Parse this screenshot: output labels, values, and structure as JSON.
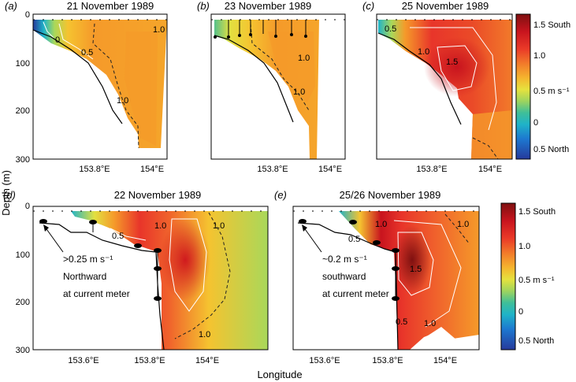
{
  "figure": {
    "ylabel": "Depth (m)",
    "xlabel": "Longitude"
  },
  "chart_data": [
    {
      "type": "heatmap",
      "panel_letter": "(a)",
      "title": "21 November 1989",
      "yticks": [
        0,
        100,
        200,
        300
      ],
      "ylim": [
        0,
        300
      ],
      "xticks": [
        "153.8°E",
        "154°E"
      ],
      "contour_labels": [
        "0",
        "0.5",
        "1.0",
        "1.0"
      ],
      "bottom_profile": [
        [
          153.7,
          35
        ],
        [
          153.74,
          55
        ],
        [
          153.78,
          85
        ],
        [
          153.82,
          125
        ],
        [
          153.86,
          175
        ],
        [
          153.9,
          230
        ]
      ],
      "max_speed_south": 1.3
    },
    {
      "type": "heatmap",
      "panel_letter": "(b)",
      "title": "23 November 1989",
      "yticks": [],
      "ylim": [
        0,
        300
      ],
      "xticks": [
        "153.8°E",
        "154°E"
      ],
      "contour_labels": [
        "1.0",
        "1.0"
      ],
      "bottom_profile": [
        [
          153.69,
          45
        ],
        [
          153.74,
          60
        ],
        [
          153.78,
          85
        ],
        [
          153.82,
          125
        ],
        [
          153.86,
          175
        ],
        [
          153.9,
          230
        ]
      ],
      "max_speed_south": 1.2
    },
    {
      "type": "heatmap",
      "panel_letter": "(c)",
      "title": "25 November 1989",
      "yticks": [],
      "ylim": [
        0,
        300
      ],
      "xticks": [
        "153.8°E",
        "154°E"
      ],
      "contour_labels": [
        "0.5",
        "1.0",
        "1.5"
      ],
      "bottom_profile": [
        [
          153.7,
          35
        ],
        [
          153.74,
          55
        ],
        [
          153.78,
          85
        ],
        [
          153.82,
          125
        ],
        [
          153.86,
          175
        ],
        [
          153.9,
          230
        ]
      ],
      "max_speed_south": 1.6
    },
    {
      "type": "heatmap",
      "panel_letter": "(d)",
      "title": "22 November 1989",
      "yticks": [
        0,
        100,
        200,
        300
      ],
      "ylim": [
        0,
        300
      ],
      "xticks": [
        "153.6°E",
        "153.8°E",
        "154°E"
      ],
      "contour_labels": [
        "0.5",
        "1.0",
        "1.0",
        "1.0"
      ],
      "annotation": [
        ">0.25 m s⁻¹",
        "Northward",
        "at current meter"
      ],
      "bottom_profile": [
        [
          153.53,
          30
        ],
        [
          153.6,
          40
        ],
        [
          153.66,
          60
        ],
        [
          153.72,
          80
        ],
        [
          153.76,
          95
        ],
        [
          153.79,
          160
        ],
        [
          153.81,
          300
        ]
      ],
      "max_speed_south": 1.5
    },
    {
      "type": "heatmap",
      "panel_letter": "(e)",
      "title": "25/26 November 1989",
      "yticks": [],
      "ylim": [
        0,
        300
      ],
      "xticks": [
        "153.6°E",
        "153.8°E",
        "154°E"
      ],
      "contour_labels": [
        "0.5",
        "1.0",
        "1.0",
        "1.5",
        "0.5",
        "1.0"
      ],
      "annotation": [
        "~0.2 m s⁻¹",
        "southward",
        "at current meter"
      ],
      "bottom_profile": [
        [
          153.53,
          30
        ],
        [
          153.6,
          40
        ],
        [
          153.66,
          60
        ],
        [
          153.72,
          80
        ],
        [
          153.76,
          95
        ],
        [
          153.79,
          160
        ],
        [
          153.81,
          300
        ]
      ],
      "max_speed_south": 1.7
    }
  ],
  "colorbars": [
    {
      "ticks": [
        "1.5 South",
        "1.0",
        "0.5 m s⁻¹",
        "0",
        "0.5 North"
      ]
    },
    {
      "ticks": [
        "1.5 South",
        "1.0",
        "0.5 m s⁻¹",
        "0",
        "0.5 North"
      ]
    }
  ],
  "colors": {
    "scale": [
      "#7f1010",
      "#c8141e",
      "#e8352a",
      "#f0632c",
      "#f59a2a",
      "#f5c330",
      "#e2e040",
      "#a9d85a",
      "#55c08a",
      "#1fb3c8",
      "#1d78d0",
      "#263a9c"
    ]
  }
}
